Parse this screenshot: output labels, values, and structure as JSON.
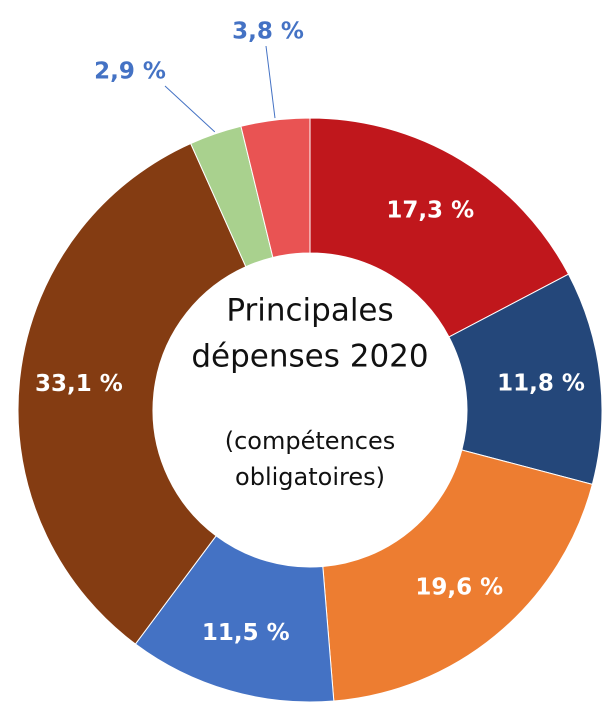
{
  "chart_data": {
    "type": "donut",
    "title_lines": [
      "Principales",
      "dépenses 2020"
    ],
    "subtitle_lines": [
      "(compétences",
      "obligatoires)"
    ],
    "values": [
      17.3,
      11.8,
      19.6,
      11.5,
      33.1,
      2.9,
      3.8
    ],
    "value_labels": [
      "17,3 %",
      "11,8 %",
      "19,6 %",
      "11,5 %",
      "33,1 %",
      "2,9 %",
      "3,8  %"
    ],
    "colors": [
      "#c0171c",
      "#24477a",
      "#ed7d31",
      "#4472c4",
      "#843c12",
      "#a9d18e",
      "#e95353"
    ]
  }
}
